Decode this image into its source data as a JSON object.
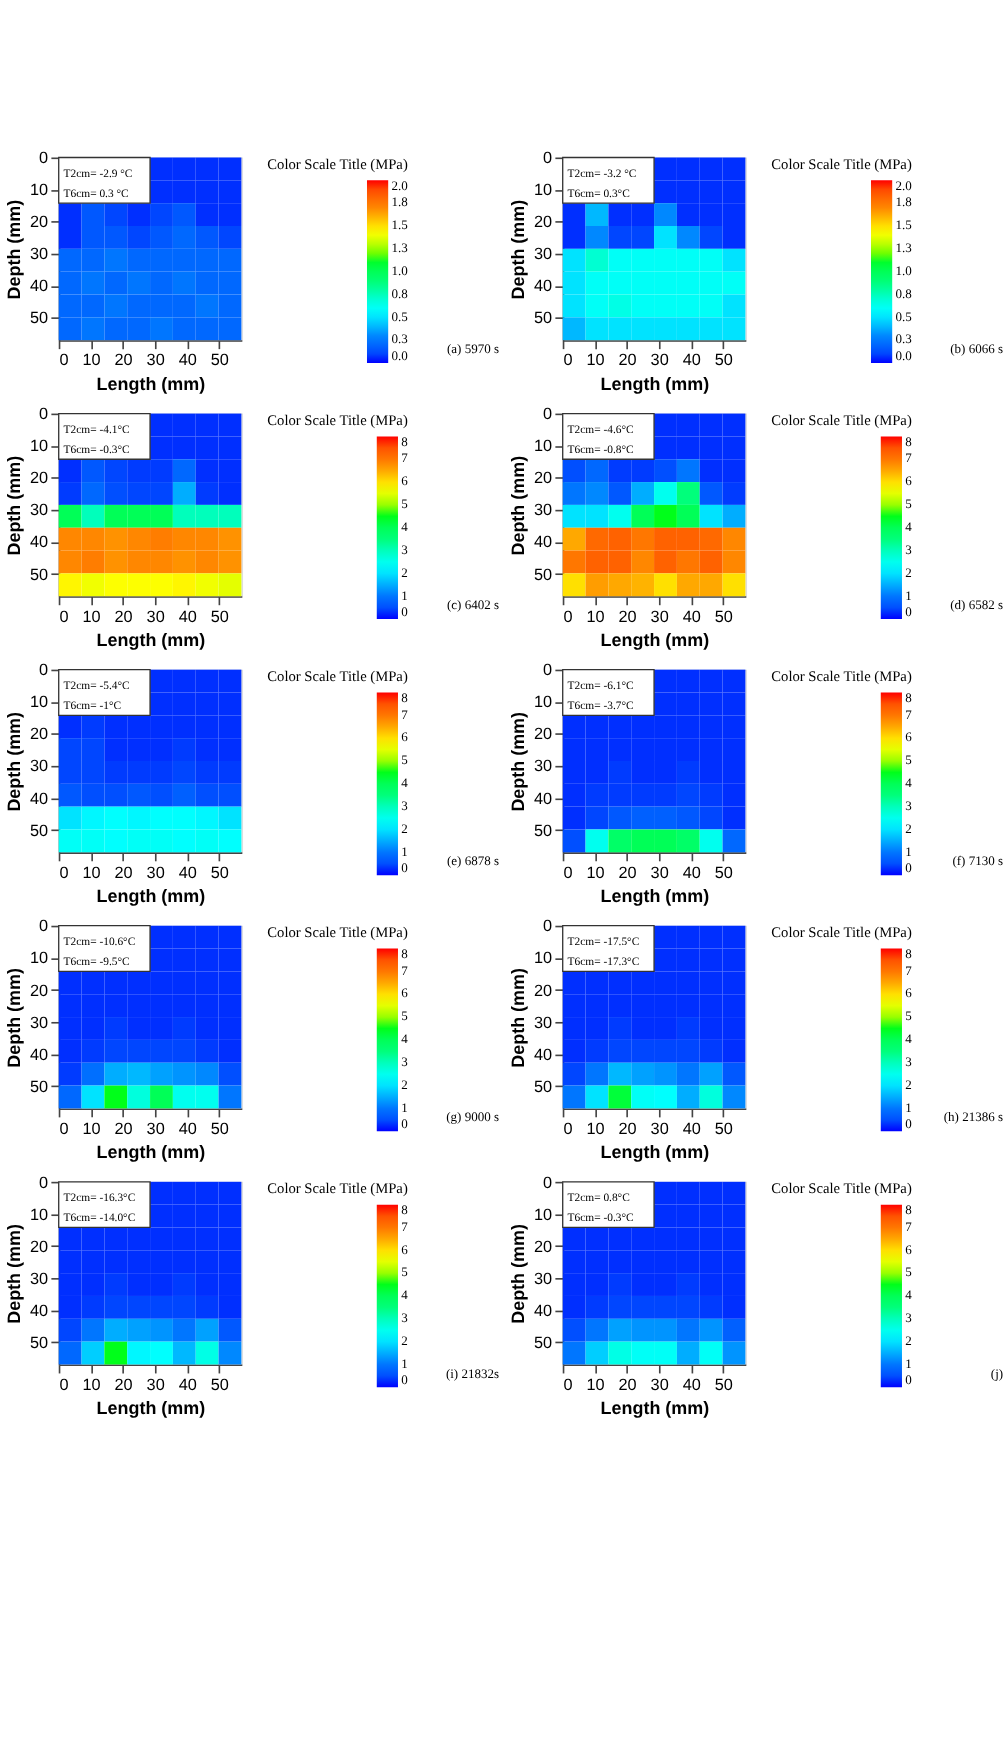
{
  "chart_data": [
    {
      "type": "heatmap",
      "xlabel": "Length (mm)",
      "ylabel": "Depth (mm)",
      "clabel": "Color Scale Title (MPa)",
      "annotations": [
        "T2cm= -2.9 °C",
        "T6cm= 0.3 °C",
        "(a) 5970 s"
      ],
      "xlim": [
        0,
        57
      ],
      "ylim": [
        57,
        0
      ],
      "xticks": [
        0,
        10,
        20,
        30,
        40,
        50
      ],
      "yticks": [
        0,
        10,
        20,
        30,
        40,
        50
      ],
      "clim": [
        0,
        2
      ],
      "cticks": [
        {
          "value": 0,
          "label": "0.0"
        },
        {
          "value": 0.25,
          "label": "0.3"
        },
        {
          "value": 0.5,
          "label": "0.5"
        },
        {
          "value": 0.75,
          "label": "0.8"
        },
        {
          "value": 1,
          "label": "1.0"
        },
        {
          "value": 1.25,
          "label": "1.3"
        },
        {
          "value": 1.5,
          "label": "1.5"
        },
        {
          "value": 1.75,
          "label": "1.8"
        },
        {
          "value": 2,
          "label": "2.0"
        }
      ],
      "cells": [
        [
          null,
          null,
          null,
          null,
          0.05,
          0.05,
          0.05,
          0.05
        ],
        [
          null,
          null,
          null,
          null,
          0.05,
          0.05,
          0.05,
          0.05
        ],
        [
          0.05,
          0.15,
          0.1,
          0.05,
          0.1,
          0.15,
          0.05,
          0.05
        ],
        [
          0.05,
          0.15,
          0.15,
          0.1,
          0.15,
          0.2,
          0.15,
          0.1
        ],
        [
          0.2,
          0.2,
          0.25,
          0.2,
          0.2,
          0.2,
          0.2,
          0.2
        ],
        [
          0.2,
          0.25,
          0.2,
          0.25,
          0.2,
          0.25,
          0.2,
          0.2
        ],
        [
          0.2,
          0.2,
          0.25,
          0.2,
          0.2,
          0.2,
          0.25,
          0.2
        ],
        [
          0.2,
          0.25,
          0.2,
          0.2,
          0.25,
          0.2,
          0.2,
          0.2
        ]
      ]
    },
    {
      "type": "heatmap",
      "xlabel": "Length (mm)",
      "ylabel": "Depth (mm)",
      "clabel": "Color Scale Title (MPa)",
      "annotations": [
        "T2cm= -3.2 °C",
        "T6cm= 0.3°C",
        "(b) 6066 s"
      ],
      "xlim": [
        0,
        57
      ],
      "ylim": [
        57,
        0
      ],
      "xticks": [
        0,
        10,
        20,
        30,
        40,
        50
      ],
      "yticks": [
        0,
        10,
        20,
        30,
        40,
        50
      ],
      "clim": [
        0,
        2
      ],
      "cticks": [
        {
          "value": 0,
          "label": "0.0"
        },
        {
          "value": 0.25,
          "label": "0.3"
        },
        {
          "value": 0.5,
          "label": "0.5"
        },
        {
          "value": 0.75,
          "label": "0.8"
        },
        {
          "value": 1,
          "label": "1.0"
        },
        {
          "value": 1.25,
          "label": "1.3"
        },
        {
          "value": 1.5,
          "label": "1.5"
        },
        {
          "value": 1.75,
          "label": "1.8"
        },
        {
          "value": 2,
          "label": "2.0"
        }
      ],
      "cells": [
        [
          null,
          null,
          null,
          null,
          0.05,
          0.05,
          0.05,
          0.05
        ],
        [
          null,
          null,
          null,
          null,
          0.05,
          0.05,
          0.05,
          0.05
        ],
        [
          0.05,
          0.4,
          0.05,
          0.05,
          0.3,
          0.05,
          0.05,
          0.05
        ],
        [
          0.05,
          0.3,
          0.1,
          0.1,
          0.5,
          0.3,
          0.1,
          0.05
        ],
        [
          0.5,
          0.7,
          0.6,
          0.6,
          0.6,
          0.6,
          0.6,
          0.5
        ],
        [
          0.5,
          0.6,
          0.6,
          0.6,
          0.6,
          0.6,
          0.6,
          0.6
        ],
        [
          0.5,
          0.6,
          0.65,
          0.6,
          0.6,
          0.6,
          0.6,
          0.5
        ],
        [
          0.4,
          0.5,
          0.5,
          0.5,
          0.5,
          0.5,
          0.5,
          0.5
        ]
      ]
    },
    {
      "type": "heatmap",
      "xlabel": "Length (mm)",
      "ylabel": "Depth (mm)",
      "clabel": "Color Scale Title (MPa)",
      "annotations": [
        "T2cm= -4.1°C",
        "T6cm= -0.3°C",
        "(c) 6402 s"
      ],
      "xlim": [
        0,
        57
      ],
      "ylim": [
        57,
        0
      ],
      "xticks": [
        0,
        10,
        20,
        30,
        40,
        50
      ],
      "yticks": [
        0,
        10,
        20,
        30,
        40,
        50
      ],
      "clim": [
        0,
        8
      ],
      "cticks": [
        0,
        1,
        2,
        3,
        4,
        5,
        6,
        7,
        8
      ],
      "cells": [
        [
          null,
          null,
          null,
          null,
          0.2,
          0.2,
          0.2,
          0.2
        ],
        [
          null,
          null,
          null,
          null,
          0.2,
          0.2,
          0.2,
          0.2
        ],
        [
          0.2,
          0.6,
          0.4,
          0.3,
          0.3,
          0.8,
          0.2,
          0.2
        ],
        [
          0.3,
          0.8,
          0.5,
          0.4,
          0.4,
          1.5,
          0.3,
          0.2
        ],
        [
          4,
          3,
          4,
          4,
          4,
          3,
          3,
          3
        ],
        [
          6.8,
          6.8,
          6.7,
          6.8,
          6.9,
          6.8,
          6.8,
          6.7
        ],
        [
          6.8,
          6.9,
          6.7,
          6.8,
          6.8,
          6.7,
          6.8,
          6.7
        ],
        [
          5.8,
          5.6,
          5.7,
          5.7,
          5.7,
          5.8,
          5.6,
          5.5
        ]
      ]
    },
    {
      "type": "heatmap",
      "xlabel": "Length (mm)",
      "ylabel": "Depth (mm)",
      "clabel": "Color Scale Title (MPa)",
      "annotations": [
        "T2cm= -4.6°C",
        "T6cm= -0.8°C",
        "(d) 6582 s"
      ],
      "xlim": [
        0,
        57
      ],
      "ylim": [
        57,
        0
      ],
      "xticks": [
        0,
        10,
        20,
        30,
        40,
        50
      ],
      "yticks": [
        0,
        10,
        20,
        30,
        40,
        50
      ],
      "clim": [
        0,
        8
      ],
      "cticks": [
        0,
        1,
        2,
        3,
        4,
        5,
        6,
        7,
        8
      ],
      "cells": [
        [
          null,
          null,
          null,
          null,
          0.2,
          0.2,
          0.2,
          0.2
        ],
        [
          null,
          null,
          null,
          null,
          0.2,
          0.2,
          0.2,
          0.2
        ],
        [
          0.5,
          0.8,
          0.3,
          0.3,
          0.5,
          1.0,
          0.2,
          0.2
        ],
        [
          1.0,
          1.2,
          0.6,
          1.5,
          2.5,
          3.5,
          0.6,
          0.3
        ],
        [
          2.0,
          2.0,
          2.5,
          4.0,
          4.5,
          4.0,
          2.0,
          1.5
        ],
        [
          6.5,
          7.2,
          7.3,
          7.0,
          7.3,
          7.3,
          7.2,
          6.8
        ],
        [
          7.0,
          7.3,
          7.3,
          6.8,
          7.3,
          7.0,
          7.3,
          6.8
        ],
        [
          6.0,
          6.6,
          6.5,
          6.4,
          6.0,
          6.5,
          6.5,
          6.0
        ]
      ]
    },
    {
      "type": "heatmap",
      "xlabel": "Length (mm)",
      "ylabel": "Depth (mm)",
      "clabel": "Color Scale Title (MPa)",
      "annotations": [
        "T2cm= -5.4°C",
        "T6cm= -1°C",
        "(e) 6878 s"
      ],
      "xlim": [
        0,
        57
      ],
      "ylim": [
        57,
        0
      ],
      "xticks": [
        0,
        10,
        20,
        30,
        40,
        50
      ],
      "yticks": [
        0,
        10,
        20,
        30,
        40,
        50
      ],
      "clim": [
        0,
        8
      ],
      "cticks": [
        0,
        1,
        2,
        3,
        4,
        5,
        6,
        7,
        8
      ],
      "cells": [
        [
          null,
          null,
          null,
          null,
          0.2,
          0.2,
          0.2,
          0.2
        ],
        [
          null,
          null,
          null,
          null,
          0.2,
          0.2,
          0.2,
          0.2
        ],
        [
          0.2,
          0.3,
          0.2,
          0.2,
          0.2,
          0.2,
          0.2,
          0.2
        ],
        [
          0.4,
          0.4,
          0.2,
          0.2,
          0.2,
          0.3,
          0.2,
          0.2
        ],
        [
          0.4,
          0.4,
          0.3,
          0.3,
          0.3,
          0.4,
          0.3,
          0.3
        ],
        [
          0.6,
          0.5,
          0.5,
          0.6,
          0.5,
          0.7,
          0.5,
          0.5
        ],
        [
          2.0,
          2.2,
          2.3,
          2.2,
          2.3,
          2.3,
          2.2,
          2.0
        ],
        [
          2.4,
          2.4,
          2.3,
          2.4,
          2.4,
          2.3,
          2.4,
          2.3
        ]
      ]
    },
    {
      "type": "heatmap",
      "xlabel": "Length (mm)",
      "ylabel": "Depth (mm)",
      "clabel": "Color Scale Title (MPa)",
      "annotations": [
        "T2cm= -6.1°C",
        "T6cm= -3.7°C",
        "(f) 7130 s"
      ],
      "xlim": [
        0,
        57
      ],
      "ylim": [
        57,
        0
      ],
      "xticks": [
        0,
        10,
        20,
        30,
        40,
        50
      ],
      "yticks": [
        0,
        10,
        20,
        30,
        40,
        50
      ],
      "clim": [
        0,
        8
      ],
      "cticks": [
        0,
        1,
        2,
        3,
        4,
        5,
        6,
        7,
        8
      ],
      "cells": [
        [
          null,
          null,
          null,
          null,
          0.2,
          0.2,
          0.2,
          0.2
        ],
        [
          null,
          null,
          null,
          null,
          0.2,
          0.2,
          0.2,
          0.2
        ],
        [
          0.2,
          0.2,
          0.2,
          0.2,
          0.2,
          0.2,
          0.2,
          0.2
        ],
        [
          0.2,
          0.2,
          0.2,
          0.2,
          0.2,
          0.2,
          0.2,
          0.2
        ],
        [
          0.2,
          0.2,
          0.3,
          0.2,
          0.2,
          0.3,
          0.2,
          0.2
        ],
        [
          0.2,
          0.3,
          0.3,
          0.3,
          0.3,
          0.4,
          0.3,
          0.2
        ],
        [
          0.2,
          0.4,
          0.6,
          0.7,
          0.7,
          0.6,
          0.4,
          0.2
        ],
        [
          0.5,
          2.5,
          3.8,
          4.0,
          4.0,
          3.8,
          2.5,
          0.8
        ]
      ]
    },
    {
      "type": "heatmap",
      "xlabel": "Length (mm)",
      "ylabel": "Depth (mm)",
      "clabel": "Color Scale Title (MPa)",
      "annotations": [
        "T2cm= -10.6°C",
        "T6cm= -9.5°C",
        "(g) 9000 s"
      ],
      "xlim": [
        0,
        57
      ],
      "ylim": [
        57,
        0
      ],
      "xticks": [
        0,
        10,
        20,
        30,
        40,
        50
      ],
      "yticks": [
        0,
        10,
        20,
        30,
        40,
        50
      ],
      "clim": [
        0,
        8
      ],
      "cticks": [
        0,
        1,
        2,
        3,
        4,
        5,
        6,
        7,
        8
      ],
      "cells": [
        [
          null,
          null,
          null,
          null,
          0.2,
          0.2,
          0.2,
          0.2
        ],
        [
          null,
          null,
          null,
          null,
          0.2,
          0.2,
          0.2,
          0.2
        ],
        [
          0.2,
          0.2,
          0.2,
          0.2,
          0.2,
          0.2,
          0.2,
          0.2
        ],
        [
          0.2,
          0.2,
          0.2,
          0.2,
          0.2,
          0.2,
          0.2,
          0.2
        ],
        [
          0.2,
          0.2,
          0.3,
          0.2,
          0.2,
          0.3,
          0.2,
          0.2
        ],
        [
          0.2,
          0.3,
          0.4,
          0.4,
          0.4,
          0.4,
          0.3,
          0.2
        ],
        [
          0.3,
          0.9,
          1.5,
          1.6,
          1.4,
          1.3,
          1.2,
          0.5
        ],
        [
          0.8,
          2.0,
          4.5,
          2.7,
          4.0,
          2.5,
          2.5,
          1.0
        ]
      ]
    },
    {
      "type": "heatmap",
      "xlabel": "Length (mm)",
      "ylabel": "Depth (mm)",
      "clabel": "Color Scale Title (MPa)",
      "annotations": [
        "T2cm= -17.5°C",
        "T6cm= -17.3°C",
        "(h) 21386 s"
      ],
      "xlim": [
        0,
        57
      ],
      "ylim": [
        57,
        0
      ],
      "xticks": [
        0,
        10,
        20,
        30,
        40,
        50
      ],
      "yticks": [
        0,
        10,
        20,
        30,
        40,
        50
      ],
      "clim": [
        0,
        8
      ],
      "cticks": [
        0,
        1,
        2,
        3,
        4,
        5,
        6,
        7,
        8
      ],
      "cells": [
        [
          null,
          null,
          null,
          null,
          0.2,
          0.2,
          0.2,
          0.2
        ],
        [
          null,
          null,
          null,
          null,
          0.2,
          0.2,
          0.2,
          0.2
        ],
        [
          0.2,
          0.2,
          0.2,
          0.2,
          0.2,
          0.2,
          0.2,
          0.2
        ],
        [
          0.2,
          0.2,
          0.2,
          0.2,
          0.2,
          0.2,
          0.2,
          0.2
        ],
        [
          0.2,
          0.2,
          0.3,
          0.2,
          0.2,
          0.3,
          0.2,
          0.2
        ],
        [
          0.2,
          0.3,
          0.4,
          0.4,
          0.4,
          0.4,
          0.3,
          0.2
        ],
        [
          0.4,
          1.0,
          1.6,
          1.4,
          1.3,
          1.0,
          1.4,
          0.6
        ],
        [
          1.0,
          2.0,
          4.3,
          2.4,
          2.3,
          1.5,
          2.7,
          1.2
        ]
      ]
    },
    {
      "type": "heatmap",
      "xlabel": "Length (mm)",
      "ylabel": "Depth (mm)",
      "clabel": "Color Scale Title (MPa)",
      "annotations": [
        "T2cm= -16.3°C",
        "T6cm= -14.0°C",
        "(i) 21832s"
      ],
      "xlim": [
        0,
        57
      ],
      "ylim": [
        57,
        0
      ],
      "xticks": [
        0,
        10,
        20,
        30,
        40,
        50
      ],
      "yticks": [
        0,
        10,
        20,
        30,
        40,
        50
      ],
      "clim": [
        0,
        8
      ],
      "cticks": [
        0,
        1,
        2,
        3,
        4,
        5,
        6,
        7,
        8
      ],
      "cells": [
        [
          null,
          null,
          null,
          null,
          0.2,
          0.2,
          0.2,
          0.2
        ],
        [
          null,
          null,
          null,
          null,
          0.2,
          0.2,
          0.2,
          0.2
        ],
        [
          0.2,
          0.2,
          0.2,
          0.2,
          0.2,
          0.2,
          0.2,
          0.2
        ],
        [
          0.2,
          0.2,
          0.2,
          0.2,
          0.2,
          0.2,
          0.2,
          0.2
        ],
        [
          0.2,
          0.2,
          0.3,
          0.2,
          0.2,
          0.3,
          0.2,
          0.2
        ],
        [
          0.2,
          0.3,
          0.4,
          0.4,
          0.4,
          0.4,
          0.3,
          0.2
        ],
        [
          0.4,
          1.0,
          1.5,
          1.4,
          1.3,
          1.0,
          1.4,
          0.6
        ],
        [
          0.8,
          1.8,
          4.5,
          2.2,
          2.3,
          1.6,
          2.6,
          1.2
        ]
      ]
    },
    {
      "type": "heatmap",
      "xlabel": "Length (mm)",
      "ylabel": "Depth (mm)",
      "clabel": "Color Scale Title (MPa)",
      "annotations": [
        "T2cm= 0.8°C",
        "T6cm= -0.3°C",
        "(j)"
      ],
      "xlim": [
        0,
        57
      ],
      "ylim": [
        57,
        0
      ],
      "xticks": [
        0,
        10,
        20,
        30,
        40,
        50
      ],
      "yticks": [
        0,
        10,
        20,
        30,
        40,
        50
      ],
      "clim": [
        0,
        8
      ],
      "cticks": [
        0,
        1,
        2,
        3,
        4,
        5,
        6,
        7,
        8
      ],
      "cells": [
        [
          null,
          null,
          null,
          null,
          0.2,
          0.2,
          0.2,
          0.2
        ],
        [
          null,
          null,
          null,
          null,
          0.2,
          0.2,
          0.2,
          0.2
        ],
        [
          0.2,
          0.2,
          0.2,
          0.2,
          0.2,
          0.2,
          0.2,
          0.2
        ],
        [
          0.2,
          0.2,
          0.2,
          0.2,
          0.2,
          0.2,
          0.2,
          0.2
        ],
        [
          0.2,
          0.2,
          0.3,
          0.2,
          0.2,
          0.3,
          0.2,
          0.2
        ],
        [
          0.2,
          0.3,
          0.4,
          0.4,
          0.4,
          0.4,
          0.3,
          0.2
        ],
        [
          0.5,
          1.0,
          1.4,
          1.3,
          1.3,
          1.0,
          1.3,
          0.7
        ],
        [
          1.0,
          1.8,
          2.6,
          2.4,
          2.4,
          1.5,
          2.4,
          1.3
        ]
      ]
    }
  ]
}
